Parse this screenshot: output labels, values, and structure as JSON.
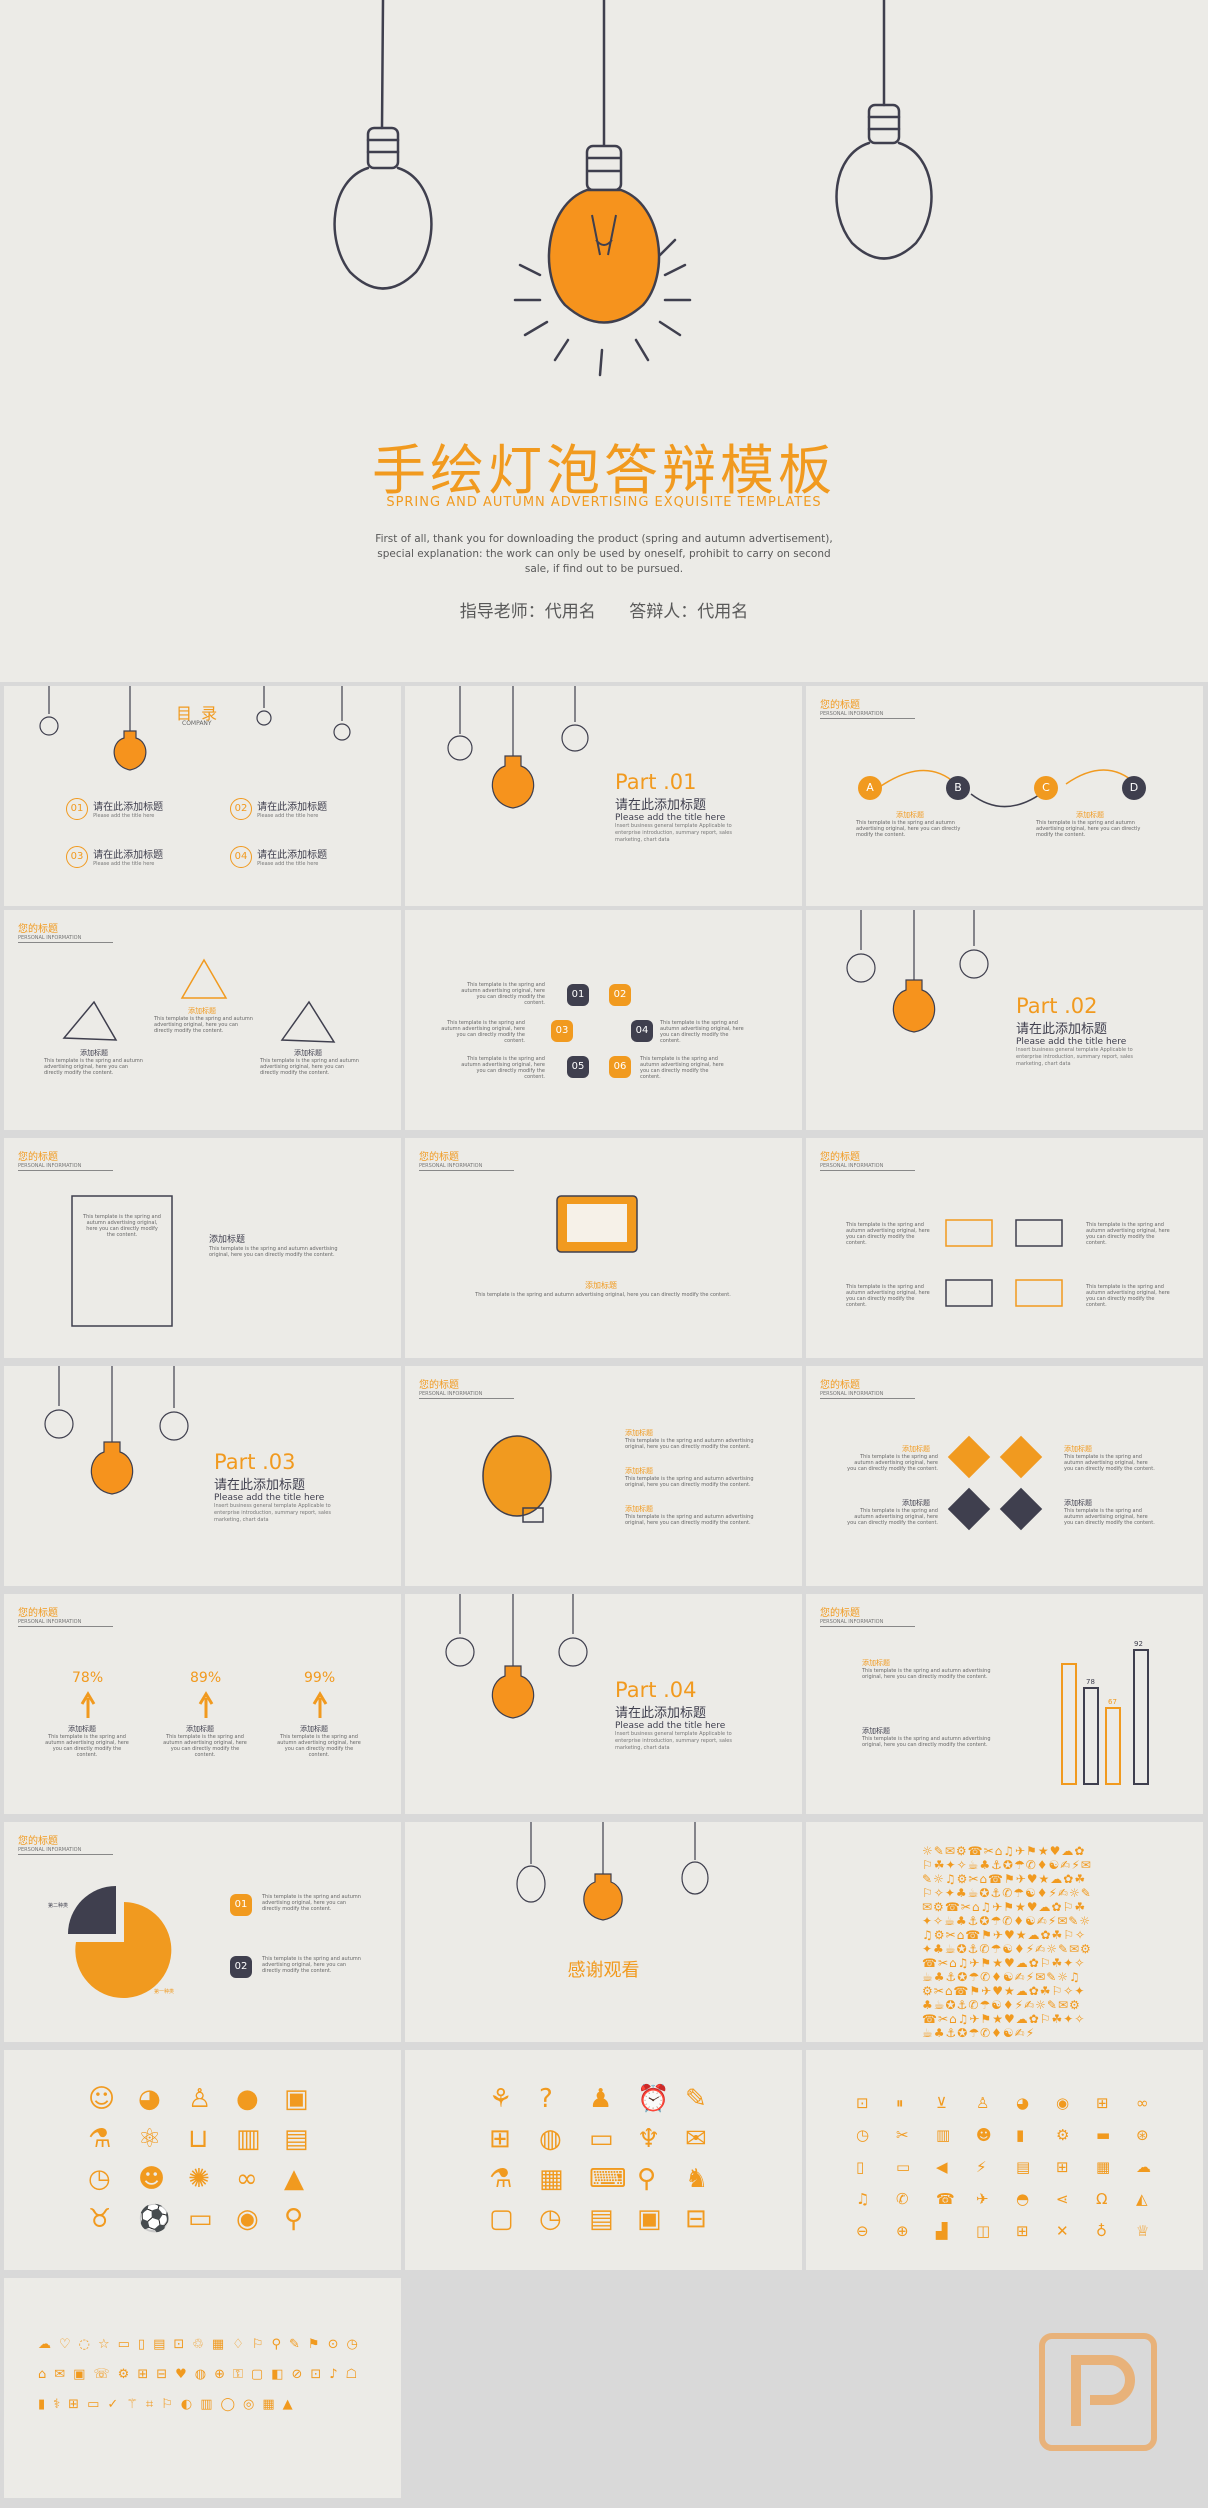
{
  "hero": {
    "title": "手绘灯泡答辩模板",
    "subtitle": "SPRING AND AUTUMN ADVERTISING EXQUISITE TEMPLATES",
    "description": "First of all, thank you for downloading the product (spring and autumn advertisement), special explanation: the work can only be used by oneself, prohibit to carry on second sale, if find out to be pursued.",
    "advisor": "指导老师：代用名",
    "defender": "答辩人：代用名"
  },
  "common": {
    "section_title": "您的标题",
    "section_subtitle": "PERSONAL INFORMATION",
    "add_title": "添加标题",
    "cn_title": "请在此添加标题",
    "en_title": "Please add the title here",
    "lorem": "This template is the spring and autumn advertising original, here you can directly modify the content.",
    "part_desc": "Insert business general template Applicable to enterprise introduction, summary report, sales marketing, chart data"
  },
  "toc": {
    "title": "目 录",
    "company": "COMPANY",
    "items": [
      {
        "num": "01",
        "label": "请在此添加标题",
        "sub": "Please add the title here"
      },
      {
        "num": "02",
        "label": "请在此添加标题",
        "sub": "Please add the title here"
      },
      {
        "num": "03",
        "label": "请在此添加标题",
        "sub": "Please add the title here"
      },
      {
        "num": "04",
        "label": "请在此添加标题",
        "sub": "Please add the title here"
      }
    ]
  },
  "parts": [
    "Part  .01",
    "Part  .02",
    "Part  .03",
    "Part  .04"
  ],
  "flow": [
    "A",
    "B",
    "C",
    "D"
  ],
  "numbers": [
    "01",
    "02",
    "03",
    "04",
    "05",
    "06"
  ],
  "percent": [
    "78%",
    "89%",
    "99%"
  ],
  "bar_labels": [
    "92",
    "78",
    "67"
  ],
  "pie_labels": {
    "a": "第二种类",
    "b": "第一种类"
  },
  "pie_nums": [
    "01",
    "02"
  ],
  "thanks": "感谢观看",
  "colors": {
    "accent": "#f19a1f",
    "dark": "#3f3f4e",
    "paper": "#ecebe7",
    "gap": "#d9d9d9"
  }
}
